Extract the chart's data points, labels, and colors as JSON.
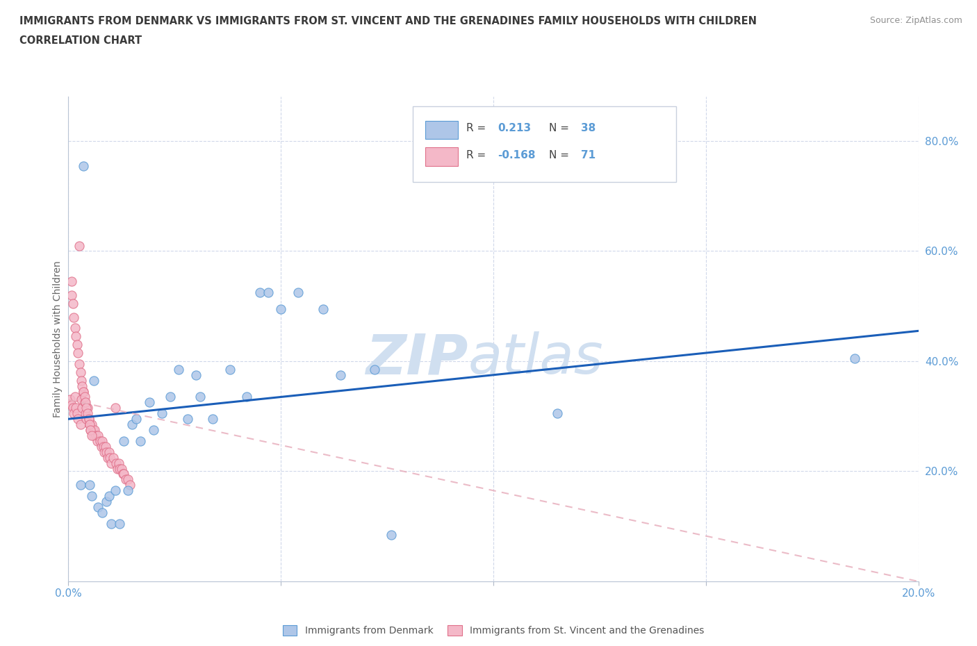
{
  "title_line1": "IMMIGRANTS FROM DENMARK VS IMMIGRANTS FROM ST. VINCENT AND THE GRENADINES FAMILY HOUSEHOLDS WITH CHILDREN",
  "title_line2": "CORRELATION CHART",
  "source": "Source: ZipAtlas.com",
  "ylabel": "Family Households with Children",
  "xlim": [
    0.0,
    0.2
  ],
  "ylim": [
    0.0,
    0.88
  ],
  "denmark_color": "#aec6e8",
  "denmark_edge_color": "#5b9bd5",
  "stv_color": "#f4b8c8",
  "stv_edge_color": "#e0708a",
  "denmark_R": 0.213,
  "denmark_N": 38,
  "stv_R": -0.168,
  "stv_N": 71,
  "trend_blue_color": "#1a5eb8",
  "trend_pink_color": "#e8b0be",
  "watermark_zip": "ZIP",
  "watermark_atlas": "atlas",
  "watermark_color": "#d0dff0",
  "legend_label_dk": "Immigrants from Denmark",
  "legend_label_stv": "Immigrants from St. Vincent and the Grenadines",
  "background_color": "#ffffff",
  "grid_color": "#d0d8ea",
  "axis_label_color": "#5b9bd5",
  "title_color": "#3a3a3a",
  "dk_trend_x0": 0.0,
  "dk_trend_y0": 0.295,
  "dk_trend_x1": 0.2,
  "dk_trend_y1": 0.455,
  "stv_trend_x0": 0.0,
  "stv_trend_y0": 0.33,
  "stv_trend_x1": 0.2,
  "stv_trend_y1": 0.0,
  "denmark_x": [
    0.0028,
    0.005,
    0.0055,
    0.007,
    0.008,
    0.009,
    0.0095,
    0.01,
    0.011,
    0.012,
    0.013,
    0.014,
    0.015,
    0.016,
    0.017,
    0.019,
    0.02,
    0.022,
    0.024,
    0.026,
    0.028,
    0.031,
    0.034,
    0.038,
    0.042,
    0.045,
    0.05,
    0.054,
    0.06,
    0.064,
    0.072,
    0.076,
    0.115,
    0.185,
    0.03,
    0.047,
    0.006,
    0.0035
  ],
  "denmark_y": [
    0.175,
    0.175,
    0.155,
    0.135,
    0.125,
    0.145,
    0.155,
    0.105,
    0.165,
    0.105,
    0.255,
    0.165,
    0.285,
    0.295,
    0.255,
    0.325,
    0.275,
    0.305,
    0.335,
    0.385,
    0.295,
    0.335,
    0.295,
    0.385,
    0.335,
    0.525,
    0.495,
    0.525,
    0.495,
    0.375,
    0.385,
    0.085,
    0.305,
    0.405,
    0.375,
    0.525,
    0.365,
    0.755
  ],
  "stv_x": [
    0.0005,
    0.0008,
    0.001,
    0.0012,
    0.0015,
    0.0018,
    0.002,
    0.0022,
    0.0025,
    0.0028,
    0.003,
    0.0032,
    0.0035,
    0.0038,
    0.004,
    0.0042,
    0.0045,
    0.0048,
    0.005,
    0.0052,
    0.0055,
    0.0058,
    0.006,
    0.0062,
    0.0065,
    0.0068,
    0.007,
    0.0075,
    0.0078,
    0.008,
    0.0082,
    0.0085,
    0.0088,
    0.009,
    0.0092,
    0.0095,
    0.0098,
    0.01,
    0.0105,
    0.011,
    0.0112,
    0.0115,
    0.0118,
    0.012,
    0.0125,
    0.0128,
    0.013,
    0.0135,
    0.014,
    0.0145,
    0.0008,
    0.001,
    0.0012,
    0.0015,
    0.0018,
    0.002,
    0.0022,
    0.0025,
    0.0028,
    0.003,
    0.0032,
    0.0035,
    0.0038,
    0.004,
    0.0042,
    0.0045,
    0.0048,
    0.005,
    0.0052,
    0.0055,
    0.0008
  ],
  "stv_y": [
    0.33,
    0.32,
    0.315,
    0.305,
    0.335,
    0.315,
    0.305,
    0.295,
    0.61,
    0.285,
    0.33,
    0.315,
    0.345,
    0.325,
    0.305,
    0.295,
    0.315,
    0.295,
    0.285,
    0.275,
    0.285,
    0.275,
    0.265,
    0.275,
    0.265,
    0.255,
    0.265,
    0.255,
    0.245,
    0.255,
    0.245,
    0.235,
    0.245,
    0.235,
    0.225,
    0.235,
    0.225,
    0.215,
    0.225,
    0.315,
    0.215,
    0.205,
    0.215,
    0.205,
    0.205,
    0.195,
    0.195,
    0.185,
    0.185,
    0.175,
    0.52,
    0.505,
    0.48,
    0.46,
    0.445,
    0.43,
    0.415,
    0.395,
    0.38,
    0.365,
    0.355,
    0.345,
    0.335,
    0.325,
    0.315,
    0.305,
    0.295,
    0.285,
    0.275,
    0.265,
    0.545
  ]
}
